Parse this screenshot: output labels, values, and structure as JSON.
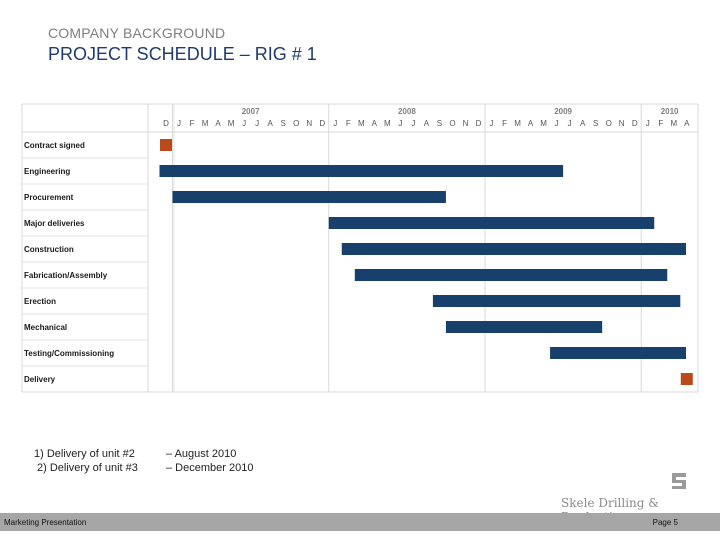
{
  "header": {
    "kicker": "COMPANY BACKGROUND",
    "title": "PROJECT SCHEDULE – RIG # 1"
  },
  "chart_data": {
    "type": "gantt",
    "years": [
      "2007",
      "2008",
      "2009",
      "2010"
    ],
    "month_letters": [
      "D",
      "J",
      "F",
      "M",
      "A",
      "M",
      "J",
      "J",
      "A",
      "S",
      "O",
      "N",
      "D",
      "J",
      "F",
      "M",
      "A",
      "M",
      "J",
      "J",
      "A",
      "S",
      "O",
      "N",
      "D",
      "J",
      "F",
      "M",
      "A",
      "M",
      "J",
      "J",
      "A",
      "S",
      "O",
      "N",
      "D",
      "J",
      "F",
      "M",
      "A"
    ],
    "start_month": "2006-12",
    "bar_color": "#17406d",
    "milestone_color": "#b84a1b",
    "tasks": [
      {
        "name": "Contract signed",
        "kind": "milestone",
        "date": "2006-12"
      },
      {
        "name": "Engineering",
        "kind": "bar",
        "start": "2006-12",
        "end": "2009-06"
      },
      {
        "name": "Procurement",
        "kind": "bar",
        "start": "2007-01",
        "end": "2008-09"
      },
      {
        "name": "Major deliveries",
        "kind": "bar",
        "start": "2008-01",
        "end": "2010-01"
      },
      {
        "name": "Construction",
        "kind": "bar",
        "start": "2008-02",
        "end": "2010-04"
      },
      {
        "name": "Fabrication/Assembly",
        "kind": "bar",
        "start": "2008-03",
        "end": "2010-02"
      },
      {
        "name": "Erection",
        "kind": "bar",
        "start": "2008-09",
        "end": "2010-03"
      },
      {
        "name": "Mechanical",
        "kind": "bar",
        "start": "2008-10",
        "end": "2009-09"
      },
      {
        "name": "Testing/Commissioning",
        "kind": "bar",
        "start": "2009-06",
        "end": "2010-04"
      },
      {
        "name": "Delivery",
        "kind": "milestone",
        "date": "2010-04"
      }
    ]
  },
  "notes": [
    {
      "label": "1)  Delivery of unit #2",
      "value": "– August 2010"
    },
    {
      "label": "2) Delivery of unit #3",
      "value": "– December 2010"
    }
  ],
  "logo_text": "Skele Drilling & Production",
  "footer": {
    "left": "Marketing Presentation",
    "right": "Page 5"
  }
}
